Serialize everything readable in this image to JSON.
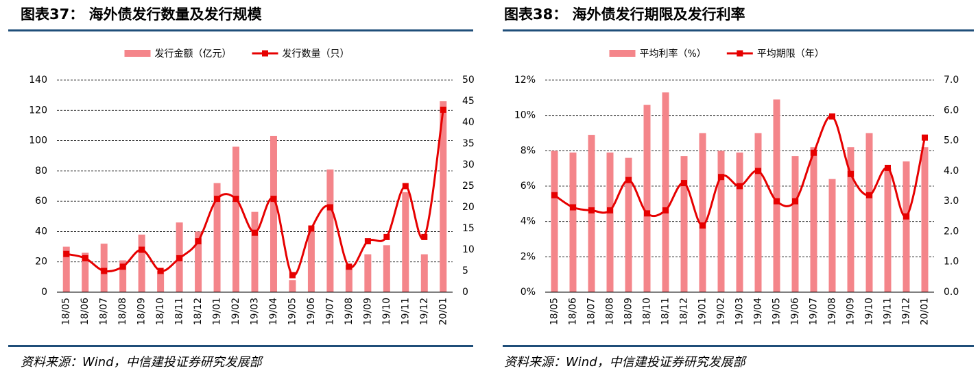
{
  "chart_data": [
    {
      "type": "bar-line",
      "title": "图表37： 海外债发行数量及发行规模",
      "categories": [
        "18/05",
        "18/06",
        "18/07",
        "18/08",
        "18/09",
        "18/10",
        "18/11",
        "18/12",
        "19/01",
        "19/02",
        "19/03",
        "19/04",
        "19/05",
        "19/06",
        "19/07",
        "19/08",
        "19/09",
        "19/10",
        "19/11",
        "19/12",
        "20/01"
      ],
      "series": [
        {
          "name": "发行金额（亿元）",
          "kind": "bar",
          "color": "#f4858a",
          "values": [
            30,
            26,
            32,
            21,
            38,
            14,
            46,
            40,
            72,
            96,
            53,
            103,
            8,
            40,
            81,
            18,
            25,
            31,
            66,
            25,
            126
          ]
        },
        {
          "name": "发行数量（只）",
          "kind": "line",
          "axis": "y2",
          "color": "#e60000",
          "values": [
            9,
            8,
            5,
            6,
            10,
            5,
            8,
            12,
            22,
            22,
            14,
            22,
            4,
            15,
            20,
            6,
            12,
            13,
            25,
            13,
            43
          ]
        }
      ],
      "ylim": [
        0,
        140
      ],
      "yticks": [
        0,
        20,
        40,
        60,
        80,
        100,
        120,
        140
      ],
      "y2lim": [
        0,
        50
      ],
      "y2ticks": [
        0,
        5,
        10,
        15,
        20,
        25,
        30,
        35,
        40,
        45,
        50
      ],
      "grid": true,
      "legend": "top",
      "source": "资料来源：Wind，中信建投证券研究发展部"
    },
    {
      "type": "bar-line",
      "title": "图表38： 海外债发行期限及发行利率",
      "categories": [
        "18/05",
        "18/06",
        "18/07",
        "18/08",
        "18/09",
        "18/10",
        "18/11",
        "18/12",
        "19/01",
        "19/02",
        "19/03",
        "19/04",
        "19/05",
        "19/06",
        "19/07",
        "19/08",
        "19/09",
        "19/10",
        "19/11",
        "19/12",
        "20/01"
      ],
      "series": [
        {
          "name": "平均利率（%）",
          "kind": "bar",
          "color": "#f4858a",
          "values": [
            8.0,
            7.9,
            8.9,
            7.9,
            7.6,
            10.6,
            11.3,
            7.7,
            9.0,
            8.0,
            7.9,
            9.0,
            10.9,
            7.7,
            8.2,
            6.4,
            8.2,
            9.0,
            7.0,
            7.4,
            8.2
          ]
        },
        {
          "name": "平均期限（年）",
          "kind": "line",
          "axis": "y2",
          "color": "#e60000",
          "values": [
            3.2,
            2.8,
            2.7,
            2.7,
            3.7,
            2.6,
            2.7,
            3.6,
            2.2,
            3.8,
            3.5,
            4.0,
            3.0,
            3.0,
            4.6,
            5.8,
            3.9,
            3.2,
            4.1,
            2.5,
            5.1
          ]
        }
      ],
      "ylim": [
        0,
        12
      ],
      "yticks": [
        {
          "value": 0,
          "label": "0%"
        },
        {
          "value": 2,
          "label": "2%"
        },
        {
          "value": 4,
          "label": "4%"
        },
        {
          "value": 6,
          "label": "6%"
        },
        {
          "value": 8,
          "label": "8%"
        },
        {
          "value": 10,
          "label": "10%"
        },
        {
          "value": 12,
          "label": "12%"
        }
      ],
      "y2lim": [
        0,
        7
      ],
      "y2ticks": [
        {
          "value": 0,
          "label": "0.0"
        },
        {
          "value": 1,
          "label": "1.0"
        },
        {
          "value": 2,
          "label": "2.0"
        },
        {
          "value": 3,
          "label": "3.0"
        },
        {
          "value": 4,
          "label": "4.0"
        },
        {
          "value": 5,
          "label": "5.0"
        },
        {
          "value": 6,
          "label": "6.0"
        },
        {
          "value": 7,
          "label": "7.0"
        }
      ],
      "grid": true,
      "legend": "top",
      "source": "资料来源：Wind，中信建投证券研究发展部"
    }
  ]
}
